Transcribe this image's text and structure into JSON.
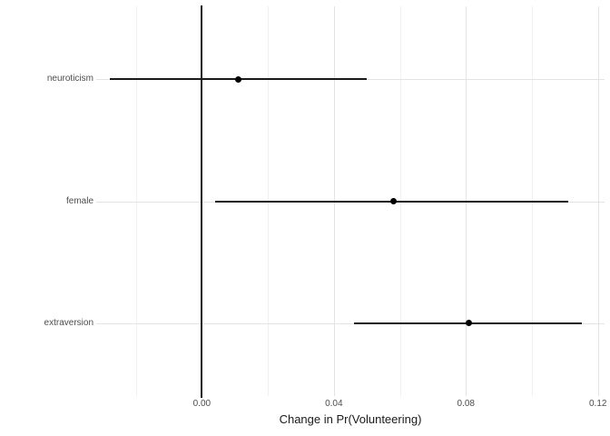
{
  "chart_data": {
    "type": "scatter",
    "subtype": "dot-and-whisker coefficient plot with horizontal confidence intervals",
    "title": "",
    "xlabel": "Change in Pr(Volunteering)",
    "ylabel": "",
    "xlim": [
      -0.032,
      0.122
    ],
    "x_major_ticks": [
      0,
      0.04,
      0.08,
      0.12
    ],
    "x_tick_labels": [
      "0.00",
      "0.04",
      "0.08",
      "0.12"
    ],
    "x_minor_gridlines": [
      -0.02,
      0.02,
      0.06,
      0.1
    ],
    "reference_line_x": 0,
    "grid": true,
    "legend": false,
    "categories": [
      "neuroticism",
      "female",
      "extraversion"
    ],
    "points": [
      {
        "label": "neuroticism",
        "estimate": 0.011,
        "ci_low": -0.028,
        "ci_high": 0.05
      },
      {
        "label": "female",
        "estimate": 0.058,
        "ci_low": 0.004,
        "ci_high": 0.111
      },
      {
        "label": "extraversion",
        "estimate": 0.081,
        "ci_low": 0.046,
        "ci_high": 0.115
      }
    ],
    "style": {
      "background": "#ffffff",
      "point_color": "#000000",
      "whisker_color": "#1a1a1a",
      "zero_line_color": "#1a1a1a",
      "grid_major_color": "#e3e3e3",
      "grid_minor_color": "#f0f0f0",
      "axis_text_color": "#4d4d4d",
      "axis_title_color": "#1a1a1a"
    }
  }
}
